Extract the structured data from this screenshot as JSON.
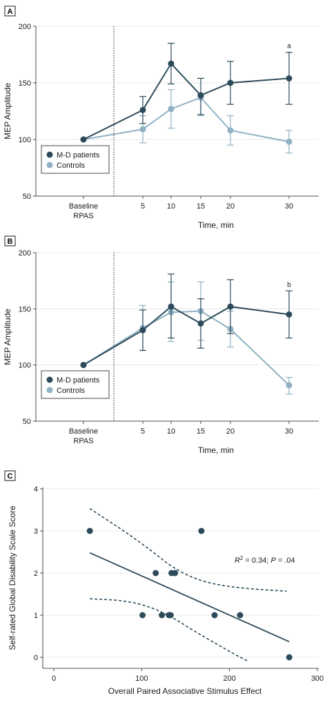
{
  "colors": {
    "patients": "#2d4a5a",
    "controls": "#8fb1c2",
    "fit": "#2d4a5a"
  },
  "chart_data": [
    {
      "type": "line",
      "panel_label": "A",
      "categories": [
        "Baseline\nRPAS",
        "5",
        "10",
        "15",
        "20",
        "30"
      ],
      "xlabel": "Time, min",
      "ylabel": "MEP Amplitude",
      "ylim": [
        50,
        200
      ],
      "yticks": [
        "50",
        "100",
        "150",
        "200"
      ],
      "annotation": "a",
      "legend_position": "bottom-left",
      "series": [
        {
          "name": "M-D patients",
          "color": "#2d4a5a",
          "values": [
            100,
            126,
            167,
            139,
            150,
            154
          ],
          "error_low": [
            100,
            114,
            149,
            122,
            131,
            131
          ],
          "error_high": [
            100,
            138,
            185,
            154,
            169,
            177
          ]
        },
        {
          "name": "Controls",
          "color": "#8fb1c2",
          "values": [
            100,
            109,
            127,
            137,
            108,
            98
          ],
          "error_low": [
            100,
            97,
            110,
            121,
            95,
            88
          ],
          "error_high": [
            100,
            121,
            144,
            140,
            121,
            108
          ]
        }
      ]
    },
    {
      "type": "line",
      "panel_label": "B",
      "categories": [
        "Baseline\nRPAS",
        "5",
        "10",
        "15",
        "20",
        "30"
      ],
      "xlabel": "Time, min",
      "ylabel": "MEP Amplitude",
      "ylim": [
        50,
        200
      ],
      "yticks": [
        "50",
        "100",
        "150",
        "200"
      ],
      "annotation": "b",
      "legend_position": "bottom-left",
      "series": [
        {
          "name": "M-D patients",
          "color": "#2d4a5a",
          "values": [
            100,
            131,
            152,
            137,
            152,
            145
          ],
          "error_low": [
            100,
            113,
            124,
            115,
            128,
            124
          ],
          "error_high": [
            100,
            149,
            181,
            159,
            176,
            166
          ]
        },
        {
          "name": "Controls",
          "color": "#8fb1c2",
          "values": [
            100,
            133,
            147,
            148,
            132,
            82
          ],
          "error_low": [
            100,
            113,
            121,
            122,
            116,
            74
          ],
          "error_high": [
            100,
            153,
            174,
            174,
            148,
            89
          ]
        }
      ]
    },
    {
      "type": "scatter",
      "panel_label": "C",
      "xlabel": "Overall Paired Associative Stimulus Effect",
      "ylabel": "Self-rated Global Disability Scale Score",
      "xlim": [
        0,
        300
      ],
      "ylim": [
        0,
        4
      ],
      "xticks": [
        "0",
        "100",
        "200",
        "300"
      ],
      "yticks": [
        "0",
        "1",
        "2",
        "3",
        "4"
      ],
      "points": [
        {
          "x": 41,
          "y": 3
        },
        {
          "x": 116,
          "y": 2
        },
        {
          "x": 101,
          "y": 1
        },
        {
          "x": 123,
          "y": 1
        },
        {
          "x": 131,
          "y": 1
        },
        {
          "x": 133,
          "y": 1
        },
        {
          "x": 134,
          "y": 2
        },
        {
          "x": 138,
          "y": 2
        },
        {
          "x": 168,
          "y": 3
        },
        {
          "x": 183,
          "y": 1
        },
        {
          "x": 212,
          "y": 1
        },
        {
          "x": 268,
          "y": 0
        }
      ],
      "fit_line": {
        "x": [
          41,
          268
        ],
        "y": [
          2.48,
          0.37
        ]
      },
      "ci_upper": {
        "x": [
          41,
          80,
          110,
          135,
          165,
          200,
          240,
          265
        ],
        "y": [
          3.53,
          3.0,
          2.55,
          2.13,
          1.82,
          1.67,
          1.6,
          1.57
        ]
      },
      "ci_lower": {
        "x": [
          41,
          80,
          110,
          135,
          160,
          185,
          205,
          220
        ],
        "y": [
          1.39,
          1.35,
          1.2,
          0.95,
          0.62,
          0.32,
          0.08,
          -0.08
        ]
      },
      "stat_r2_value": "= 0.34; ",
      "stat_p_value": " = .04"
    }
  ]
}
